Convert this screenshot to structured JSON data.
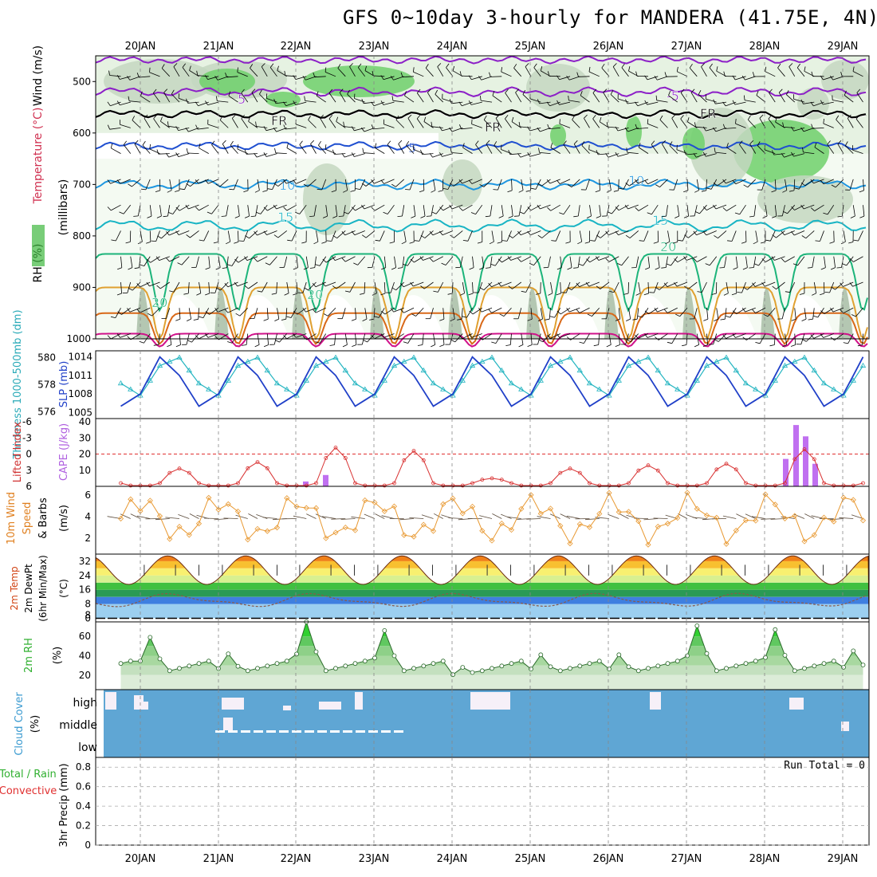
{
  "title": "GFS 0~10day 3-hourly for MANDERA (41.75E, 4N)",
  "dates": [
    "20JAN",
    "21JAN",
    "22JAN",
    "23JAN",
    "24JAN",
    "25JAN",
    "26JAN",
    "27JAN",
    "28JAN",
    "29JAN"
  ],
  "colors": {
    "rh_light": "#e6f2e2",
    "rh_mid": "#c4d7c1",
    "rh_dark": "#9fb59c",
    "rh_green": "#6fd06b",
    "t_purple": "#8c1fc7",
    "t_blue": "#1f4fd0",
    "t_sky": "#1e96e0",
    "t_teal": "#18b4c4",
    "t_green": "#1cb47a",
    "t_orange": "#e0a030",
    "t_dorange": "#d86818",
    "t_magenta": "#d0128a",
    "thickness": "#22b4c0",
    "slp": "#1f3fc8",
    "lifted": "#d83030",
    "cape": "#c070f0",
    "wind": "#e89830",
    "rh2m": "#30c030",
    "cloud": "#5fa6d4"
  },
  "panel_labels": {
    "p1_rh": "RH (%)",
    "p1_temp": "Temperature (°C)",
    "p1_wind": "Wind (m/s)",
    "p1_unit": "(millibars)",
    "p2_thk": "Thickness 1000-500mb (dm)",
    "p2_slp": "SLP (mb)",
    "p3_li": "Lifted Index",
    "p3_cape": "CAPE (J/kg)",
    "p4_wind": "10m Wind",
    "p4_speed": "Speed",
    "p4_barbs": "& Barbs",
    "p4_unit": "(m/s)",
    "p5_t": "2m Temp",
    "p5_d": "2m DewPt",
    "p5_m": "(6hr Min/Max)",
    "p5_u": "(°C)",
    "p6_rh": "2m RH",
    "p6_u": "(%)",
    "p7_cc": "Cloud Cover",
    "p7_u": "(%)",
    "p7_high": "high",
    "p7_mid": "middle",
    "p7_low": "low",
    "p8_total": "Total / Rain",
    "p8_conv": "Convective",
    "p8_precip": "3hr Precip (mm)",
    "run_total": "Run Total = 0"
  },
  "contour_labels": {
    "m5": "-5",
    "fr": "FR",
    "p5": "5",
    "p10": "10",
    "p15": "15",
    "p20": "20"
  },
  "ticks": {
    "pressure": [
      "500",
      "600",
      "700",
      "800",
      "900",
      "1000"
    ],
    "thickness": [
      "580",
      "578",
      "576"
    ],
    "slp": [
      "1014",
      "1011",
      "1008",
      "1005"
    ],
    "lifted": [
      "-6",
      "-3",
      "0",
      "3",
      "6"
    ],
    "cape": [
      "40",
      "30",
      "20",
      "10"
    ],
    "wind": [
      "6",
      "4",
      "2"
    ],
    "temp": [
      "32",
      "24",
      "16",
      "8",
      "0"
    ],
    "temp_extra": "8",
    "rh": [
      "60",
      "40",
      "20"
    ],
    "precip": [
      "0.8",
      "0.6",
      "0.4",
      "0.2",
      "0"
    ]
  },
  "chart_data": [
    {
      "type": "heatmap",
      "title": "GFS 0~10day 3-hourly for MANDERA (41.75E, 4N)",
      "panel": "RH / Temperature / Wind vs pressure",
      "y_unit": "millibars",
      "ylim": [
        1000,
        450
      ],
      "contours_celsius": [
        -5,
        0,
        5,
        10,
        15,
        20
      ]
    },
    {
      "type": "line",
      "panel": "Thickness 1000-500mb (dm) / SLP (mb)",
      "thickness_range": [
        575.5,
        580.5
      ],
      "slp_range": [
        1004,
        1015
      ],
      "pattern": "diurnal, 4 samples per cycle",
      "slp_cycle": [
        1008,
        1014,
        1011,
        1006
      ],
      "thickness_cycle": [
        577.2,
        579.4,
        580.0,
        578.1
      ]
    },
    {
      "type": "bar",
      "panel": "CAPE (J/kg)",
      "categories": [
        "22JAN 03",
        "22JAN 09",
        "28JAN 06",
        "28JAN 09",
        "28JAN 12",
        "28JAN 15"
      ],
      "values": [
        3,
        7,
        17,
        38,
        31,
        14
      ]
    },
    {
      "type": "line",
      "panel": "2m RH (%)",
      "daily_peaks": [
        59,
        42,
        75,
        66,
        28,
        41,
        41,
        71,
        67,
        45
      ]
    },
    {
      "type": "line",
      "panel": "3hr Precip (mm)",
      "values": [
        0
      ],
      "ylim": [
        0,
        0.9
      ]
    }
  ]
}
